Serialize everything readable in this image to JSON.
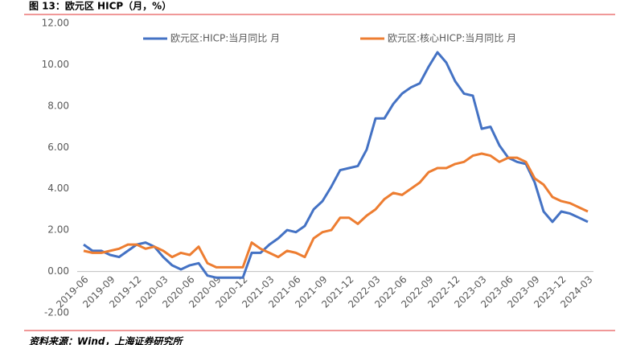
{
  "title": "图 13：欧元区 HICP（月，%）",
  "source": "资料来源：Wind，上海证券研究所",
  "chart_data": {
    "type": "line",
    "categories": [
      "2019-06",
      null,
      null,
      "2019-09",
      null,
      null,
      "2019-12",
      null,
      null,
      "2020-03",
      null,
      null,
      "2020-06",
      null,
      null,
      "2020-09",
      null,
      null,
      "2020-12",
      null,
      null,
      "2021-03",
      null,
      null,
      "2021-06",
      null,
      null,
      "2021-09",
      null,
      null,
      "2021-12",
      null,
      null,
      "2022-03",
      null,
      null,
      "2022-06",
      null,
      null,
      "2022-09",
      null,
      null,
      "2022-12",
      null,
      null,
      "2023-03",
      null,
      null,
      "2023-06",
      null,
      null,
      "2023-09",
      null,
      null,
      "2023-12",
      null,
      null,
      "2024-03"
    ],
    "series": [
      {
        "name": "欧元区:HICP:当月同比 月",
        "color": "#4472c4",
        "values": [
          1.3,
          1.0,
          1.0,
          0.8,
          0.7,
          1.0,
          1.3,
          1.4,
          1.2,
          0.7,
          0.3,
          0.1,
          0.3,
          0.4,
          -0.2,
          -0.3,
          -0.3,
          -0.3,
          -0.3,
          0.9,
          0.9,
          1.3,
          1.6,
          2.0,
          1.9,
          2.2,
          3.0,
          3.4,
          4.1,
          4.9,
          5.0,
          5.1,
          5.9,
          7.4,
          7.4,
          8.1,
          8.6,
          8.9,
          9.1,
          9.9,
          10.6,
          10.1,
          9.2,
          8.6,
          8.5,
          6.9,
          7.0,
          6.1,
          5.5,
          5.3,
          5.2,
          4.3,
          2.9,
          2.4,
          2.9,
          2.8,
          2.6,
          2.4
        ]
      },
      {
        "name": "欧元区:核心HICP:当月同比 月",
        "color": "#ed7d31",
        "values": [
          1.0,
          0.9,
          0.9,
          1.0,
          1.1,
          1.3,
          1.3,
          1.1,
          1.2,
          1.0,
          0.7,
          0.9,
          0.8,
          1.2,
          0.4,
          0.2,
          0.2,
          0.2,
          0.2,
          1.4,
          1.1,
          0.9,
          0.7,
          1.0,
          0.9,
          0.7,
          1.6,
          1.9,
          2.0,
          2.6,
          2.6,
          2.3,
          2.7,
          3.0,
          3.5,
          3.8,
          3.7,
          4.0,
          4.3,
          4.8,
          5.0,
          5.0,
          5.2,
          5.3,
          5.6,
          5.7,
          5.6,
          5.3,
          5.5,
          5.5,
          5.3,
          4.5,
          4.2,
          3.6,
          3.4,
          3.3,
          3.1,
          2.9
        ]
      }
    ],
    "ylim": [
      -2,
      12
    ],
    "yticks": [
      {
        "value": -2,
        "label": "-2.00"
      },
      {
        "value": 0,
        "label": "0.00"
      },
      {
        "value": 2,
        "label": "2.00"
      },
      {
        "value": 4,
        "label": "4.00"
      },
      {
        "value": 6,
        "label": "6.00"
      },
      {
        "value": 8,
        "label": "8.00"
      },
      {
        "value": 10,
        "label": "10.00"
      },
      {
        "value": 12,
        "label": "12.00"
      }
    ],
    "grid": false
  }
}
